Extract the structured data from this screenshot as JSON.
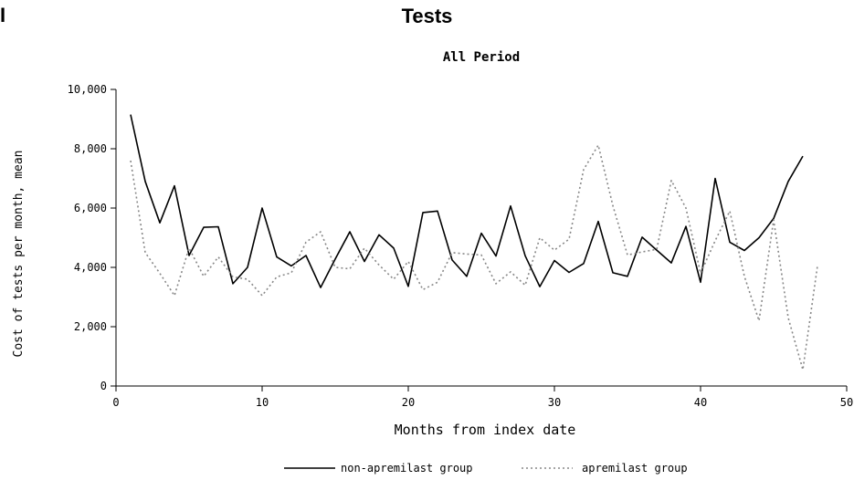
{
  "panel_letter": "I",
  "panel_title": "Tests",
  "chart_data": {
    "type": "line",
    "title": "All Period",
    "xlabel": "Months from index date",
    "ylabel": "Cost of tests per month, mean",
    "xlim": [
      0,
      50
    ],
    "ylim": [
      0,
      10000
    ],
    "x_ticks": [
      0,
      10,
      20,
      30,
      40,
      50
    ],
    "x_tick_labels": [
      "0",
      "10",
      "20",
      "30",
      "40",
      "50"
    ],
    "y_ticks": [
      0,
      2000,
      4000,
      6000,
      8000,
      10000
    ],
    "y_tick_labels": [
      "0",
      "2,000",
      "4,000",
      "6,000",
      "8,000",
      "10,000"
    ],
    "grid": false,
    "legend_position": "bottom",
    "series": [
      {
        "name": "non-apremilast group",
        "style": "solid",
        "color": "#000000",
        "x": [
          1,
          2,
          3,
          4,
          5,
          6,
          7,
          8,
          9,
          10,
          11,
          12,
          13,
          14,
          15,
          16,
          17,
          18,
          19,
          20,
          21,
          22,
          23,
          24,
          25,
          26,
          27,
          28,
          29,
          30,
          31,
          32,
          33,
          34,
          35,
          36,
          37,
          38,
          39,
          40,
          41,
          42,
          43,
          44,
          45,
          46,
          47
        ],
        "values": [
          9150,
          6900,
          5500,
          6750,
          4400,
          5350,
          5370,
          3450,
          4000,
          6000,
          4350,
          4050,
          4400,
          3320,
          4280,
          5200,
          4200,
          5100,
          4650,
          3360,
          5850,
          5900,
          4250,
          3700,
          5150,
          4380,
          6070,
          4390,
          3350,
          4230,
          3830,
          4130,
          5550,
          3820,
          3700,
          5020,
          4580,
          4150,
          5380,
          3500,
          7000,
          4850,
          4570,
          5000,
          5650,
          6900,
          7750
        ]
      },
      {
        "name": "apremilast group",
        "style": "dotted",
        "color": "#888888",
        "x": [
          1,
          2,
          3,
          4,
          5,
          6,
          7,
          8,
          9,
          10,
          11,
          12,
          13,
          14,
          15,
          16,
          17,
          18,
          19,
          20,
          21,
          22,
          23,
          24,
          25,
          26,
          27,
          28,
          29,
          30,
          31,
          32,
          33,
          34,
          35,
          36,
          37,
          38,
          39,
          40,
          41,
          42,
          43,
          44,
          45,
          46,
          47,
          48
        ],
        "values": [
          7600,
          4500,
          3800,
          3050,
          4650,
          3700,
          4350,
          3680,
          3600,
          3050,
          3680,
          3820,
          4850,
          5200,
          4000,
          3950,
          4650,
          4080,
          3600,
          4200,
          3250,
          3500,
          4500,
          4450,
          4420,
          3450,
          3850,
          3400,
          5000,
          4580,
          4950,
          7300,
          8120,
          6080,
          4420,
          4520,
          4610,
          6930,
          6000,
          3800,
          4900,
          5900,
          3700,
          2200,
          5600,
          2300,
          550,
          4050
        ]
      }
    ]
  }
}
